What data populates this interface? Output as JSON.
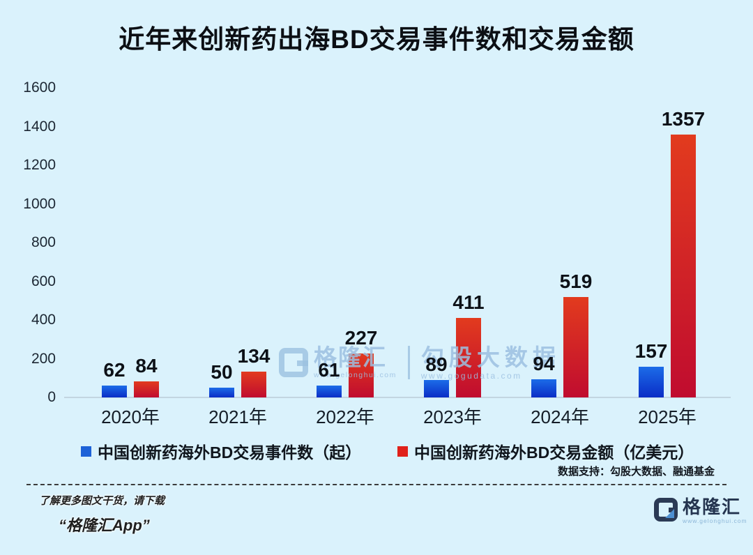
{
  "title": "近年来创新药出海BD交易事件数和交易金额",
  "chart_data": {
    "type": "bar",
    "categories": [
      "2020年",
      "2021年",
      "2022年",
      "2023年",
      "2024年",
      "2025年"
    ],
    "series": [
      {
        "name": "中国创新药海外BD交易事件数（起）",
        "values": [
          62,
          50,
          61,
          89,
          94,
          157
        ],
        "legend_color": "#1d62d8"
      },
      {
        "name": "中国创新药海外BD交易金额（亿美元）",
        "values": [
          84,
          134,
          227,
          411,
          519,
          1357
        ],
        "legend_color": "#e0211a"
      }
    ],
    "title": "近年来创新药出海BD交易事件数和交易金额",
    "xlabel": "",
    "ylabel": "",
    "ylim": [
      0,
      1600
    ],
    "yticks": [
      0,
      200,
      400,
      600,
      800,
      1000,
      1200,
      1400,
      1600
    ],
    "grid": false,
    "legend_position": "bottom",
    "value_labels": true
  },
  "watermark": {
    "brand": "格隆汇",
    "brand_url": "www.gelonghui.com",
    "partner": "勾股大数据",
    "partner_url": "www.gogudata.com"
  },
  "source_note": "数据支持：勾股大数据、融通基金",
  "footer": {
    "promo_line1": "了解更多图文干货，请下载",
    "promo_line2": "“格隆汇App”",
    "logo_text": "格隆汇",
    "logo_url": "www.gelonghui.com"
  },
  "colors": {
    "background": "#daf2fc",
    "bar_blue_top": "#1c6ce8",
    "bar_blue_bottom": "#0a2dc6",
    "bar_red_top": "#e23b1e",
    "bar_red_bottom": "#c00c2f",
    "watermark": "#9bc0e0"
  }
}
